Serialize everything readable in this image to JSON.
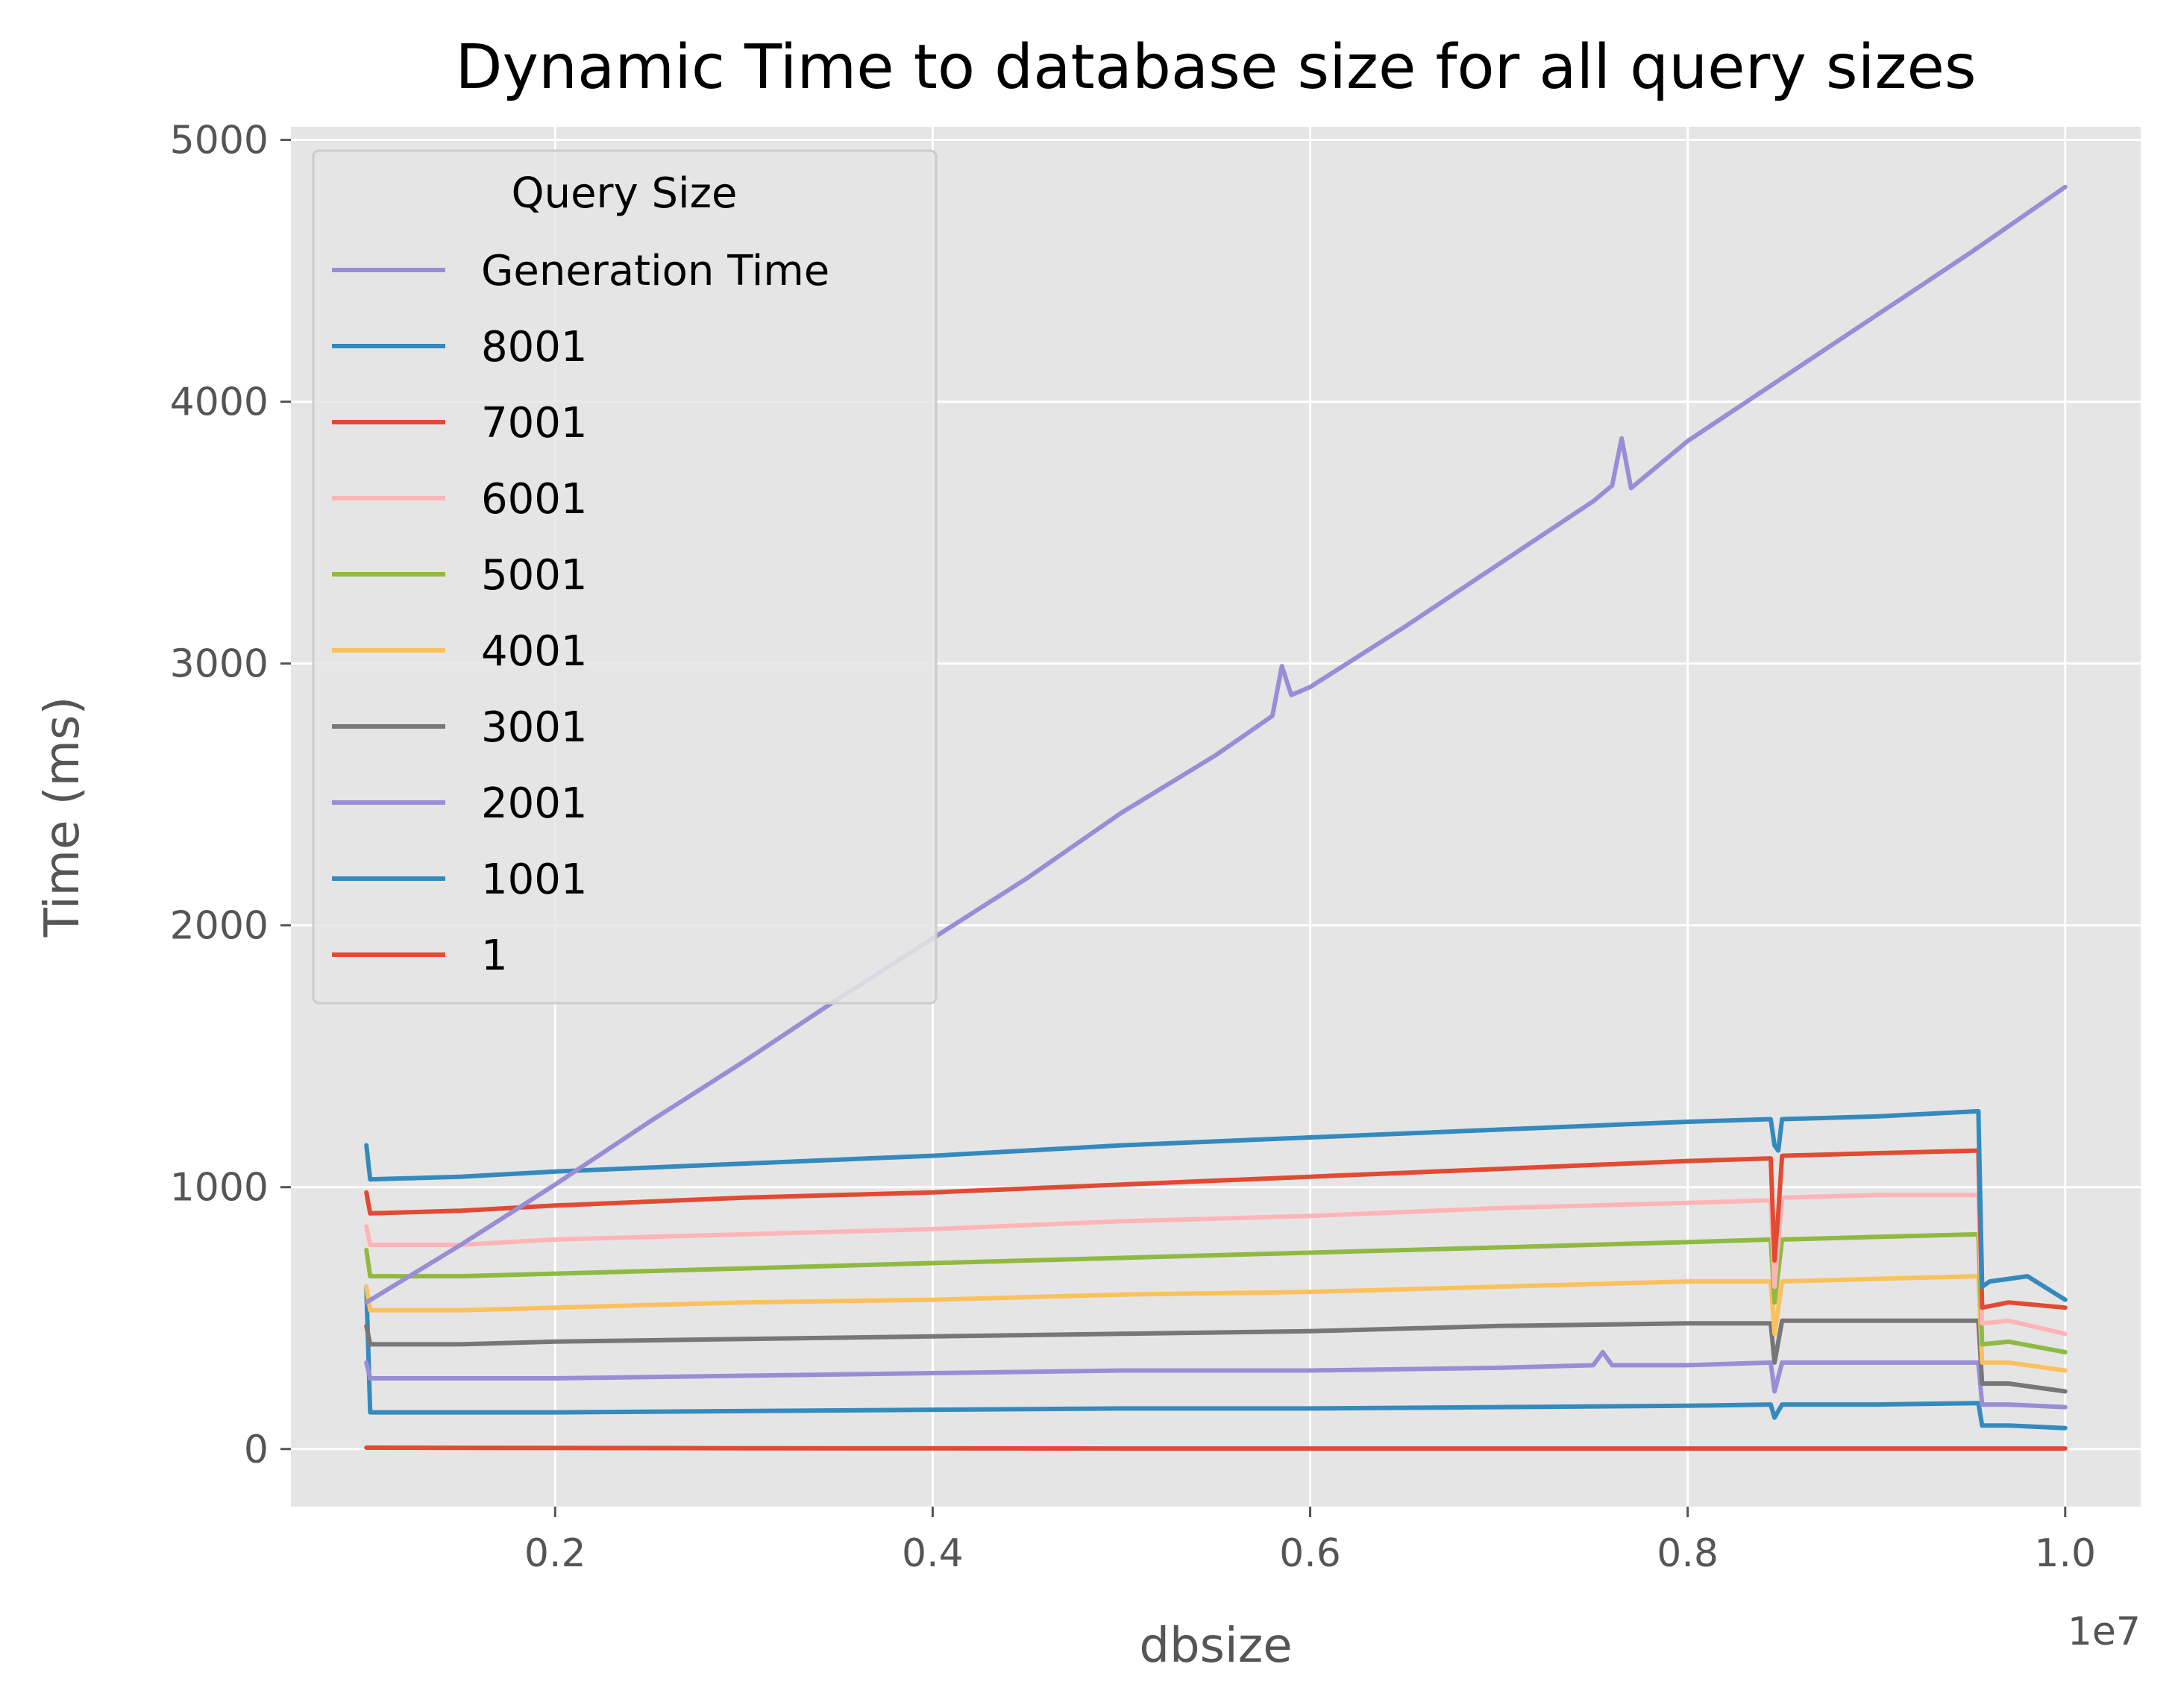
{
  "chart_data": {
    "type": "line",
    "title": "Dynamic Time to database size for all query sizes",
    "xlabel": "dbsize",
    "ylabel": "Time (ms)",
    "x_offset_label": "1e7",
    "xlim": [
      0.06,
      1.04
    ],
    "ylim": [
      -220,
      5050
    ],
    "xticks": [
      0.2,
      0.4,
      0.6,
      0.8,
      1.0
    ],
    "xtick_labels": [
      "0.2",
      "0.4",
      "0.6",
      "0.8",
      "1.0"
    ],
    "yticks": [
      0,
      1000,
      2000,
      3000,
      4000,
      5000
    ],
    "ytick_labels": [
      "0",
      "1000",
      "2000",
      "3000",
      "4000",
      "5000"
    ],
    "grid": true,
    "legend": {
      "title": "Query Size",
      "placement": "upper-left"
    },
    "series": [
      {
        "name": "Generation Time",
        "color": "#988ED5",
        "x": [
          0.1,
          0.15,
          0.2,
          0.25,
          0.3,
          0.35,
          0.4,
          0.45,
          0.5,
          0.55,
          0.58,
          0.585,
          0.59,
          0.6,
          0.65,
          0.7,
          0.75,
          0.76,
          0.765,
          0.77,
          0.8,
          0.85,
          0.9,
          0.95,
          1.0
        ],
        "y": [
          560,
          780,
          1010,
          1250,
          1480,
          1720,
          1950,
          2180,
          2430,
          2650,
          2800,
          2990,
          2880,
          2910,
          3140,
          3380,
          3620,
          3680,
          3860,
          3670,
          3850,
          4090,
          4330,
          4570,
          4820
        ]
      },
      {
        "name": "8001",
        "color": "#348ABD",
        "x": [
          0.1,
          0.102,
          0.15,
          0.2,
          0.3,
          0.4,
          0.5,
          0.6,
          0.7,
          0.8,
          0.844,
          0.846,
          0.848,
          0.85,
          0.9,
          0.954,
          0.956,
          0.96,
          0.98,
          1.0
        ],
        "y": [
          1160,
          1030,
          1040,
          1060,
          1090,
          1120,
          1160,
          1190,
          1220,
          1250,
          1260,
          1160,
          1140,
          1260,
          1270,
          1290,
          620,
          640,
          660,
          570
        ]
      },
      {
        "name": "7001",
        "color": "#E24A33",
        "x": [
          0.1,
          0.102,
          0.15,
          0.2,
          0.3,
          0.4,
          0.5,
          0.6,
          0.7,
          0.8,
          0.844,
          0.846,
          0.848,
          0.85,
          0.9,
          0.954,
          0.956,
          0.97,
          1.0
        ],
        "y": [
          980,
          900,
          910,
          930,
          960,
          980,
          1010,
          1040,
          1070,
          1100,
          1110,
          720,
          900,
          1120,
          1130,
          1140,
          540,
          560,
          540
        ]
      },
      {
        "name": "6001",
        "color": "#FFB5B8",
        "x": [
          0.1,
          0.102,
          0.15,
          0.2,
          0.3,
          0.4,
          0.5,
          0.6,
          0.7,
          0.8,
          0.844,
          0.846,
          0.85,
          0.9,
          0.954,
          0.956,
          0.97,
          1.0
        ],
        "y": [
          850,
          780,
          780,
          800,
          820,
          840,
          870,
          890,
          920,
          940,
          950,
          620,
          960,
          970,
          970,
          480,
          490,
          440
        ]
      },
      {
        "name": "5001",
        "color": "#8EBA42",
        "x": [
          0.1,
          0.102,
          0.15,
          0.2,
          0.3,
          0.4,
          0.5,
          0.6,
          0.7,
          0.8,
          0.844,
          0.846,
          0.85,
          0.9,
          0.954,
          0.956,
          0.97,
          1.0
        ],
        "y": [
          760,
          660,
          660,
          670,
          690,
          710,
          730,
          750,
          770,
          790,
          800,
          560,
          800,
          810,
          820,
          400,
          410,
          370
        ]
      },
      {
        "name": "4001",
        "color": "#FBC15E",
        "x": [
          0.1,
          0.102,
          0.15,
          0.2,
          0.3,
          0.4,
          0.5,
          0.6,
          0.7,
          0.8,
          0.844,
          0.846,
          0.85,
          0.9,
          0.954,
          0.956,
          0.97,
          1.0
        ],
        "y": [
          620,
          530,
          530,
          540,
          560,
          570,
          590,
          600,
          620,
          640,
          640,
          440,
          640,
          650,
          660,
          330,
          330,
          300
        ]
      },
      {
        "name": "3001",
        "color": "#777777",
        "x": [
          0.1,
          0.102,
          0.15,
          0.2,
          0.3,
          0.4,
          0.5,
          0.6,
          0.7,
          0.8,
          0.844,
          0.846,
          0.85,
          0.9,
          0.954,
          0.956,
          0.97,
          1.0
        ],
        "y": [
          470,
          400,
          400,
          410,
          420,
          430,
          440,
          450,
          470,
          480,
          480,
          330,
          490,
          490,
          490,
          250,
          250,
          220
        ]
      },
      {
        "name": "2001",
        "color": "#988ED5",
        "x": [
          0.1,
          0.102,
          0.15,
          0.2,
          0.3,
          0.4,
          0.5,
          0.6,
          0.7,
          0.75,
          0.755,
          0.76,
          0.8,
          0.844,
          0.846,
          0.85,
          0.9,
          0.954,
          0.956,
          0.97,
          1.0
        ],
        "y": [
          330,
          270,
          270,
          270,
          280,
          290,
          300,
          300,
          310,
          320,
          370,
          320,
          320,
          330,
          220,
          330,
          330,
          330,
          170,
          170,
          160
        ]
      },
      {
        "name": "1001",
        "color": "#348ABD",
        "x": [
          0.1,
          0.102,
          0.15,
          0.2,
          0.3,
          0.4,
          0.5,
          0.6,
          0.7,
          0.8,
          0.844,
          0.846,
          0.85,
          0.9,
          0.954,
          0.956,
          0.97,
          1.0
        ],
        "y": [
          620,
          140,
          140,
          140,
          145,
          150,
          155,
          155,
          160,
          165,
          170,
          120,
          170,
          170,
          175,
          90,
          90,
          80
        ]
      },
      {
        "name": "1",
        "color": "#E24A33",
        "x": [
          0.1,
          0.3,
          0.5,
          0.7,
          0.9,
          1.0
        ],
        "y": [
          5,
          3,
          2,
          2,
          2,
          2
        ]
      }
    ]
  }
}
